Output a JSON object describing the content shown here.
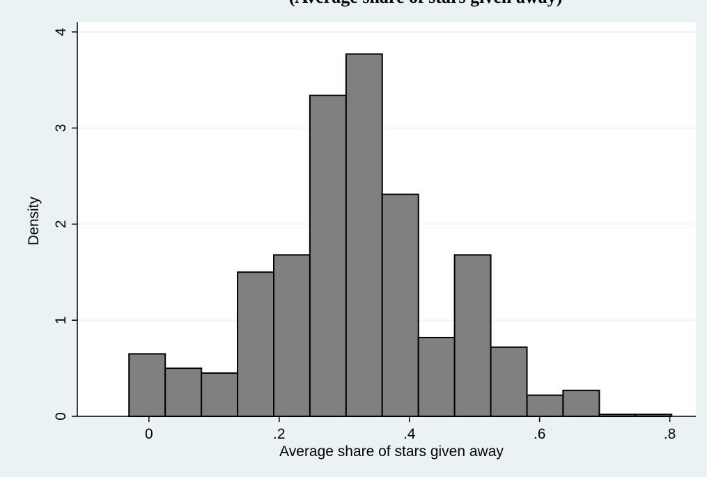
{
  "chart_data": {
    "type": "bar",
    "title": "(Average share of stars given away)",
    "xlabel": "Average share of stars given away",
    "ylabel": "Density",
    "xlim": [
      -0.11,
      0.84
    ],
    "ylim": [
      0,
      4.1
    ],
    "x_ticks": [
      0,
      0.2,
      0.4,
      0.6,
      0.8
    ],
    "x_tick_labels": [
      "0",
      ".2",
      ".4",
      ".6",
      ".8"
    ],
    "y_ticks": [
      0,
      1,
      2,
      3,
      4
    ],
    "y_tick_labels": [
      "0",
      "1",
      "2",
      "3",
      "4"
    ],
    "grid": true,
    "legend": "none",
    "bin_width": 0.0556,
    "bins": [
      {
        "start": -0.0306,
        "end": 0.025,
        "value": 0.65
      },
      {
        "start": 0.025,
        "end": 0.0806,
        "value": 0.5
      },
      {
        "start": 0.0806,
        "end": 0.1361,
        "value": 0.45
      },
      {
        "start": 0.1361,
        "end": 0.1917,
        "value": 1.5
      },
      {
        "start": 0.1917,
        "end": 0.2472,
        "value": 1.68
      },
      {
        "start": 0.2472,
        "end": 0.3028,
        "value": 3.34
      },
      {
        "start": 0.3028,
        "end": 0.3583,
        "value": 3.77
      },
      {
        "start": 0.3583,
        "end": 0.4139,
        "value": 2.31
      },
      {
        "start": 0.4139,
        "end": 0.4694,
        "value": 0.82
      },
      {
        "start": 0.4694,
        "end": 0.525,
        "value": 1.68
      },
      {
        "start": 0.525,
        "end": 0.5806,
        "value": 0.72
      },
      {
        "start": 0.5806,
        "end": 0.6361,
        "value": 0.22
      },
      {
        "start": 0.6361,
        "end": 0.6917,
        "value": 0.27
      },
      {
        "start": 0.6917,
        "end": 0.7472,
        "value": 0.02
      },
      {
        "start": 0.7472,
        "end": 0.8028,
        "value": 0.02
      }
    ],
    "colors": {
      "background": "#eaf2f3",
      "plot_background": "#ffffff",
      "bar_fill": "#808080",
      "bar_stroke": "#000000",
      "grid": "#eaf2f3"
    }
  }
}
